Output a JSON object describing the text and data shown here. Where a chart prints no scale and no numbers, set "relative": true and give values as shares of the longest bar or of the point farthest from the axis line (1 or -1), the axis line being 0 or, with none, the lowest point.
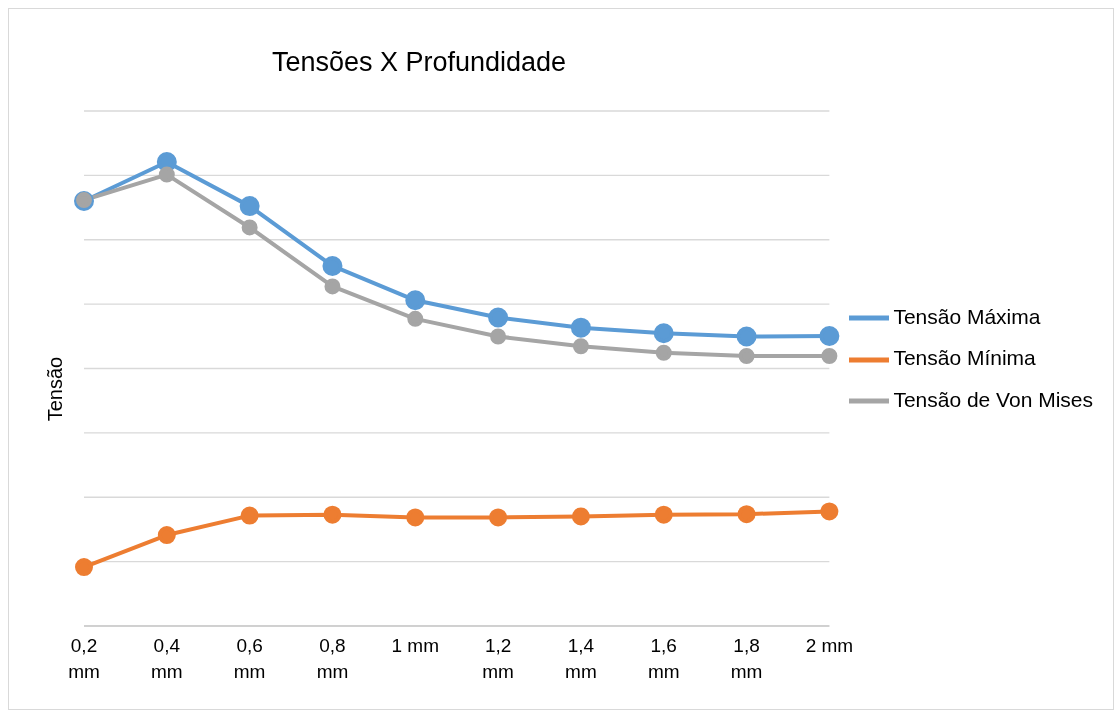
{
  "chart_data": {
    "type": "line",
    "title": "Tensões X Profundidade",
    "ylabel": "Tensão",
    "relative": true,
    "grid": "y",
    "legend": "right",
    "marker": "circle",
    "line_style": "solid",
    "categories": [
      "0,2 mm",
      "0,4 mm",
      "0,6 mm",
      "0,8 mm",
      "1 mm",
      "1,2 mm",
      "1,4 mm",
      "1,6 mm",
      "1,8 mm",
      "2 mm"
    ],
    "series": [
      {
        "name": "Tensão Máxima",
        "color": "#5b9bd5",
        "values": [
          0.916,
          1,
          0.905,
          0.776,
          0.702,
          0.665,
          0.643,
          0.631,
          0.624,
          0.625
        ]
      },
      {
        "name": "Tensão Mínima",
        "color": "#ed7d31",
        "values": [
          0.127,
          0.196,
          0.238,
          0.24,
          0.234,
          0.234,
          0.236,
          0.24,
          0.241,
          0.247
        ]
      },
      {
        "name": "Tensão de Von Mises",
        "color": "#a5a5a5",
        "values": [
          0.918,
          0.973,
          0.859,
          0.732,
          0.662,
          0.624,
          0.603,
          0.589,
          0.582,
          0.582
        ]
      }
    ]
  }
}
